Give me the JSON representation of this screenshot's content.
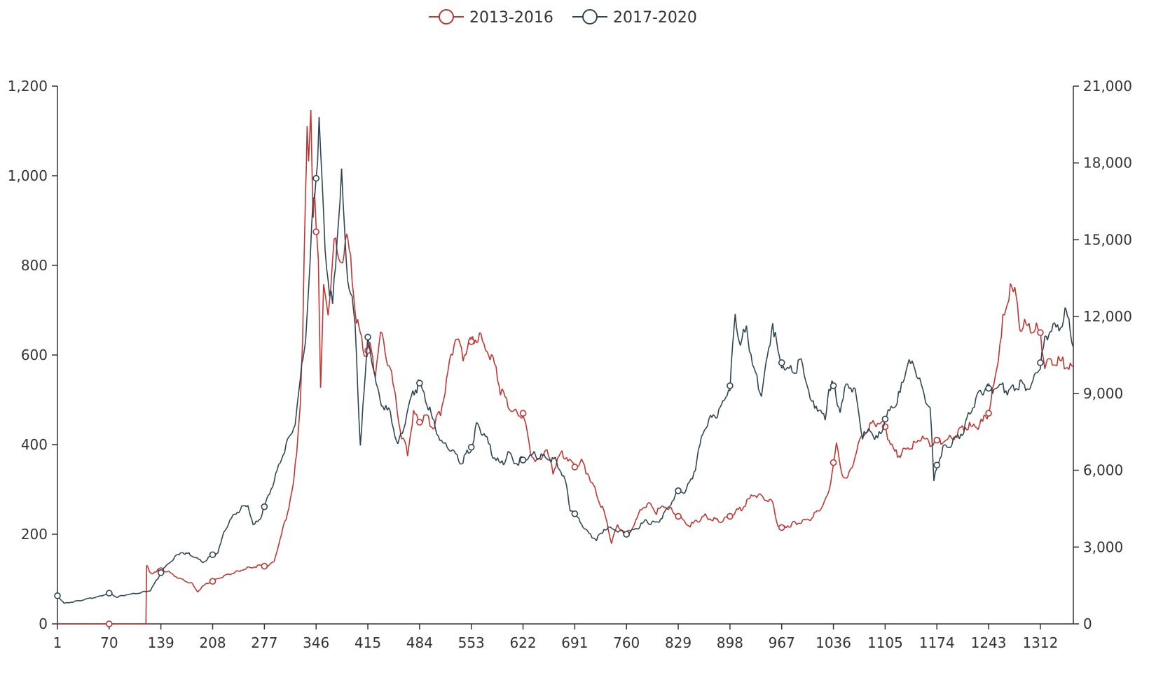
{
  "chart_data": {
    "type": "line",
    "title": "",
    "xlabel": "",
    "ylabel": "",
    "x_range": [
      1,
      1356
    ],
    "x_ticks": [
      "1",
      "70",
      "139",
      "208",
      "277",
      "346",
      "415",
      "484",
      "553",
      "622",
      "691",
      "760",
      "829",
      "898",
      "967",
      "1036",
      "1105",
      "1174",
      "1243",
      "1312"
    ],
    "y_left": {
      "range": [
        0,
        1200
      ],
      "ticks": [
        "0",
        "200",
        "400",
        "600",
        "800",
        "1,000",
        "1,200"
      ]
    },
    "y_right": {
      "range": [
        0,
        21000
      ],
      "ticks": [
        "0",
        "3,000",
        "6,000",
        "9,000",
        "12,000",
        "15,000",
        "18,000",
        "21,000"
      ]
    },
    "grid": false,
    "legend": "top-center",
    "series": [
      {
        "name": "2013-2016",
        "axis": "left",
        "color": "#c23531",
        "points": [
          [
            1,
            0
          ],
          [
            70,
            0
          ],
          [
            119,
            0
          ],
          [
            120,
            130
          ],
          [
            125,
            112
          ],
          [
            135,
            120
          ],
          [
            150,
            115
          ],
          [
            165,
            100
          ],
          [
            180,
            90
          ],
          [
            188,
            72
          ],
          [
            198,
            88
          ],
          [
            208,
            95
          ],
          [
            225,
            108
          ],
          [
            250,
            122
          ],
          [
            270,
            130
          ],
          [
            282,
            128
          ],
          [
            290,
            140
          ],
          [
            300,
            200
          ],
          [
            308,
            250
          ],
          [
            315,
            300
          ],
          [
            320,
            380
          ],
          [
            325,
            500
          ],
          [
            328,
            620
          ],
          [
            330,
            800
          ],
          [
            332,
            950
          ],
          [
            334,
            1130
          ],
          [
            336,
            1050
          ],
          [
            339,
            1150
          ],
          [
            342,
            900
          ],
          [
            344,
            950
          ],
          [
            346,
            875
          ],
          [
            349,
            820
          ],
          [
            352,
            530
          ],
          [
            356,
            760
          ],
          [
            362,
            680
          ],
          [
            370,
            860
          ],
          [
            378,
            790
          ],
          [
            385,
            860
          ],
          [
            392,
            820
          ],
          [
            398,
            700
          ],
          [
            405,
            640
          ],
          [
            412,
            600
          ],
          [
            418,
            620
          ],
          [
            425,
            560
          ],
          [
            432,
            650
          ],
          [
            438,
            610
          ],
          [
            445,
            570
          ],
          [
            452,
            500
          ],
          [
            460,
            420
          ],
          [
            468,
            380
          ],
          [
            476,
            470
          ],
          [
            484,
            450
          ],
          [
            492,
            460
          ],
          [
            502,
            440
          ],
          [
            512,
            470
          ],
          [
            522,
            560
          ],
          [
            532,
            650
          ],
          [
            542,
            600
          ],
          [
            553,
            630
          ],
          [
            562,
            640
          ],
          [
            572,
            620
          ],
          [
            582,
            590
          ],
          [
            592,
            520
          ],
          [
            602,
            490
          ],
          [
            612,
            470
          ],
          [
            622,
            470
          ],
          [
            632,
            380
          ],
          [
            642,
            360
          ],
          [
            652,
            390
          ],
          [
            662,
            340
          ],
          [
            672,
            380
          ],
          [
            682,
            370
          ],
          [
            691,
            350
          ],
          [
            700,
            360
          ],
          [
            710,
            330
          ],
          [
            720,
            290
          ],
          [
            730,
            250
          ],
          [
            740,
            180
          ],
          [
            748,
            220
          ],
          [
            760,
            200
          ],
          [
            770,
            220
          ],
          [
            780,
            260
          ],
          [
            790,
            270
          ],
          [
            800,
            250
          ],
          [
            812,
            265
          ],
          [
            829,
            240
          ],
          [
            845,
            220
          ],
          [
            865,
            240
          ],
          [
            885,
            230
          ],
          [
            898,
            240
          ],
          [
            915,
            260
          ],
          [
            930,
            290
          ],
          [
            945,
            280
          ],
          [
            955,
            270
          ],
          [
            962,
            220
          ],
          [
            967,
            215
          ],
          [
            985,
            225
          ],
          [
            1005,
            235
          ],
          [
            1020,
            260
          ],
          [
            1030,
            290
          ],
          [
            1036,
            360
          ],
          [
            1040,
            400
          ],
          [
            1046,
            340
          ],
          [
            1055,
            320
          ],
          [
            1065,
            380
          ],
          [
            1075,
            420
          ],
          [
            1085,
            440
          ],
          [
            1095,
            450
          ],
          [
            1105,
            440
          ],
          [
            1112,
            400
          ],
          [
            1118,
            380
          ],
          [
            1125,
            380
          ],
          [
            1135,
            390
          ],
          [
            1145,
            400
          ],
          [
            1155,
            420
          ],
          [
            1165,
            400
          ],
          [
            1174,
            410
          ],
          [
            1185,
            410
          ],
          [
            1195,
            415
          ],
          [
            1210,
            440
          ],
          [
            1225,
            440
          ],
          [
            1235,
            450
          ],
          [
            1243,
            470
          ],
          [
            1250,
            530
          ],
          [
            1256,
            600
          ],
          [
            1262,
            680
          ],
          [
            1268,
            700
          ],
          [
            1272,
            760
          ],
          [
            1278,
            740
          ],
          [
            1285,
            670
          ],
          [
            1295,
            660
          ],
          [
            1305,
            660
          ],
          [
            1312,
            650
          ],
          [
            1318,
            580
          ],
          [
            1323,
            590
          ],
          [
            1330,
            580
          ],
          [
            1340,
            585
          ],
          [
            1350,
            575
          ],
          [
            1356,
            575
          ]
        ]
      },
      {
        "name": "2017-2020",
        "axis": "right",
        "color": "#2f4554",
        "points": [
          [
            1,
            1100
          ],
          [
            10,
            800
          ],
          [
            20,
            850
          ],
          [
            30,
            900
          ],
          [
            45,
            1000
          ],
          [
            55,
            1050
          ],
          [
            70,
            1200
          ],
          [
            80,
            1050
          ],
          [
            95,
            1150
          ],
          [
            110,
            1200
          ],
          [
            125,
            1300
          ],
          [
            139,
            2000
          ],
          [
            150,
            2400
          ],
          [
            165,
            2800
          ],
          [
            180,
            2700
          ],
          [
            195,
            2400
          ],
          [
            208,
            2700
          ],
          [
            215,
            2800
          ],
          [
            225,
            3700
          ],
          [
            235,
            4200
          ],
          [
            245,
            4500
          ],
          [
            255,
            4700
          ],
          [
            262,
            3800
          ],
          [
            272,
            4200
          ],
          [
            280,
            4800
          ],
          [
            290,
            5600
          ],
          [
            300,
            6500
          ],
          [
            310,
            7200
          ],
          [
            318,
            7800
          ],
          [
            325,
            9500
          ],
          [
            332,
            11200
          ],
          [
            338,
            14000
          ],
          [
            342,
            16500
          ],
          [
            346,
            17400
          ],
          [
            350,
            19500
          ],
          [
            354,
            17000
          ],
          [
            358,
            14800
          ],
          [
            362,
            13500
          ],
          [
            368,
            12300
          ],
          [
            374,
            15000
          ],
          [
            380,
            17500
          ],
          [
            386,
            14000
          ],
          [
            392,
            13000
          ],
          [
            398,
            11500
          ],
          [
            405,
            7000
          ],
          [
            410,
            9000
          ],
          [
            415,
            11200
          ],
          [
            420,
            10500
          ],
          [
            426,
            9200
          ],
          [
            435,
            8500
          ],
          [
            445,
            8200
          ],
          [
            455,
            7000
          ],
          [
            465,
            8000
          ],
          [
            475,
            9000
          ],
          [
            484,
            9400
          ],
          [
            494,
            8700
          ],
          [
            505,
            7600
          ],
          [
            515,
            7000
          ],
          [
            528,
            6800
          ],
          [
            540,
            6300
          ],
          [
            553,
            6900
          ],
          [
            560,
            7700
          ],
          [
            570,
            7500
          ],
          [
            580,
            6700
          ],
          [
            592,
            6200
          ],
          [
            602,
            6600
          ],
          [
            612,
            6300
          ],
          [
            622,
            6400
          ],
          [
            635,
            6600
          ],
          [
            650,
            6500
          ],
          [
            665,
            6400
          ],
          [
            678,
            5600
          ],
          [
            685,
            4500
          ],
          [
            691,
            4300
          ],
          [
            700,
            3900
          ],
          [
            710,
            3500
          ],
          [
            720,
            3300
          ],
          [
            730,
            3700
          ],
          [
            745,
            3700
          ],
          [
            760,
            3500
          ],
          [
            772,
            3700
          ],
          [
            785,
            4000
          ],
          [
            800,
            3900
          ],
          [
            815,
            4500
          ],
          [
            829,
            5200
          ],
          [
            840,
            5200
          ],
          [
            852,
            6100
          ],
          [
            862,
            7500
          ],
          [
            872,
            8000
          ],
          [
            885,
            8300
          ],
          [
            898,
            9300
          ],
          [
            905,
            12000
          ],
          [
            912,
            11000
          ],
          [
            920,
            11500
          ],
          [
            930,
            10000
          ],
          [
            940,
            9000
          ],
          [
            948,
            10400
          ],
          [
            955,
            11800
          ],
          [
            962,
            10500
          ],
          [
            967,
            10200
          ],
          [
            975,
            9800
          ],
          [
            985,
            10000
          ],
          [
            995,
            10200
          ],
          [
            1005,
            8700
          ],
          [
            1015,
            8500
          ],
          [
            1025,
            8000
          ],
          [
            1030,
            9300
          ],
          [
            1036,
            9300
          ],
          [
            1045,
            8300
          ],
          [
            1055,
            9500
          ],
          [
            1065,
            9000
          ],
          [
            1075,
            7300
          ],
          [
            1085,
            7600
          ],
          [
            1095,
            7200
          ],
          [
            1105,
            8000
          ],
          [
            1115,
            8500
          ],
          [
            1125,
            9000
          ],
          [
            1135,
            10200
          ],
          [
            1145,
            10000
          ],
          [
            1155,
            9000
          ],
          [
            1165,
            8600
          ],
          [
            1170,
            5500
          ],
          [
            1174,
            6200
          ],
          [
            1182,
            6800
          ],
          [
            1190,
            7000
          ],
          [
            1200,
            7200
          ],
          [
            1210,
            7600
          ],
          [
            1220,
            8400
          ],
          [
            1230,
            9000
          ],
          [
            1243,
            9200
          ],
          [
            1250,
            9200
          ],
          [
            1260,
            9300
          ],
          [
            1270,
            9100
          ],
          [
            1285,
            9300
          ],
          [
            1300,
            9200
          ],
          [
            1312,
            10200
          ],
          [
            1318,
            11000
          ],
          [
            1325,
            11500
          ],
          [
            1335,
            11500
          ],
          [
            1345,
            12100
          ],
          [
            1350,
            11800
          ],
          [
            1356,
            10800
          ]
        ]
      }
    ]
  }
}
